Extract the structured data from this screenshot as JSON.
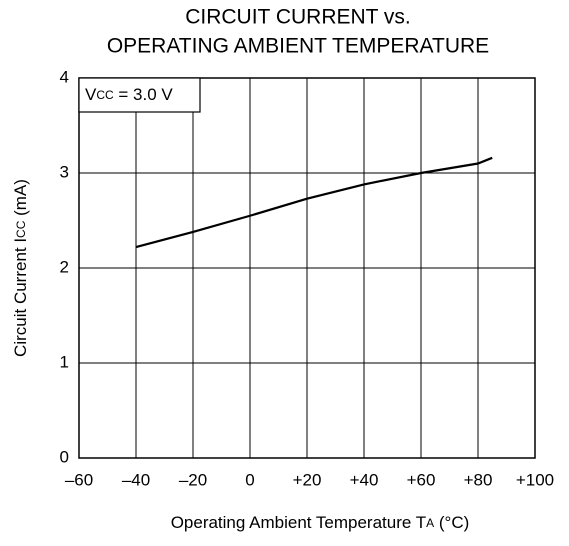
{
  "chart_data": {
    "type": "line",
    "title": [
      "CIRCUIT CURRENT vs.",
      "OPERATING AMBIENT TEMPERATURE"
    ],
    "annotation": [
      {
        "text": "V"
      },
      {
        "text": "CC",
        "sub": true
      },
      {
        "text": " = 3.0 V"
      }
    ],
    "y_label": [
      {
        "text": "Circuit Current  I"
      },
      {
        "text": "CC",
        "sub": true
      },
      {
        "text": " (mA)"
      }
    ],
    "x_label": [
      {
        "text": "Operating Ambient Temperature  T"
      },
      {
        "text": "A",
        "sub": true
      },
      {
        "text": " (°C)"
      }
    ],
    "x": [
      -40,
      -20,
      0,
      20,
      40,
      60,
      80,
      85
    ],
    "series": [
      {
        "color": "#000000",
        "values": [
          2.22,
          2.38,
          2.55,
          2.73,
          2.88,
          3.0,
          3.1,
          3.16
        ]
      }
    ],
    "xlim": [
      -60,
      100
    ],
    "ylim": [
      0,
      4
    ],
    "xticks": [
      {
        "value": -60,
        "label": "–60"
      },
      {
        "value": -40,
        "label": "–40"
      },
      {
        "value": -20,
        "label": "–20"
      },
      0,
      {
        "value": 20,
        "label": "+20"
      },
      {
        "value": 40,
        "label": "+40"
      },
      {
        "value": 60,
        "label": "+60"
      },
      {
        "value": 80,
        "label": "+80"
      },
      {
        "value": 100,
        "label": "+100"
      }
    ],
    "yticks": [
      0,
      1,
      2,
      3,
      4
    ],
    "grid": true
  }
}
